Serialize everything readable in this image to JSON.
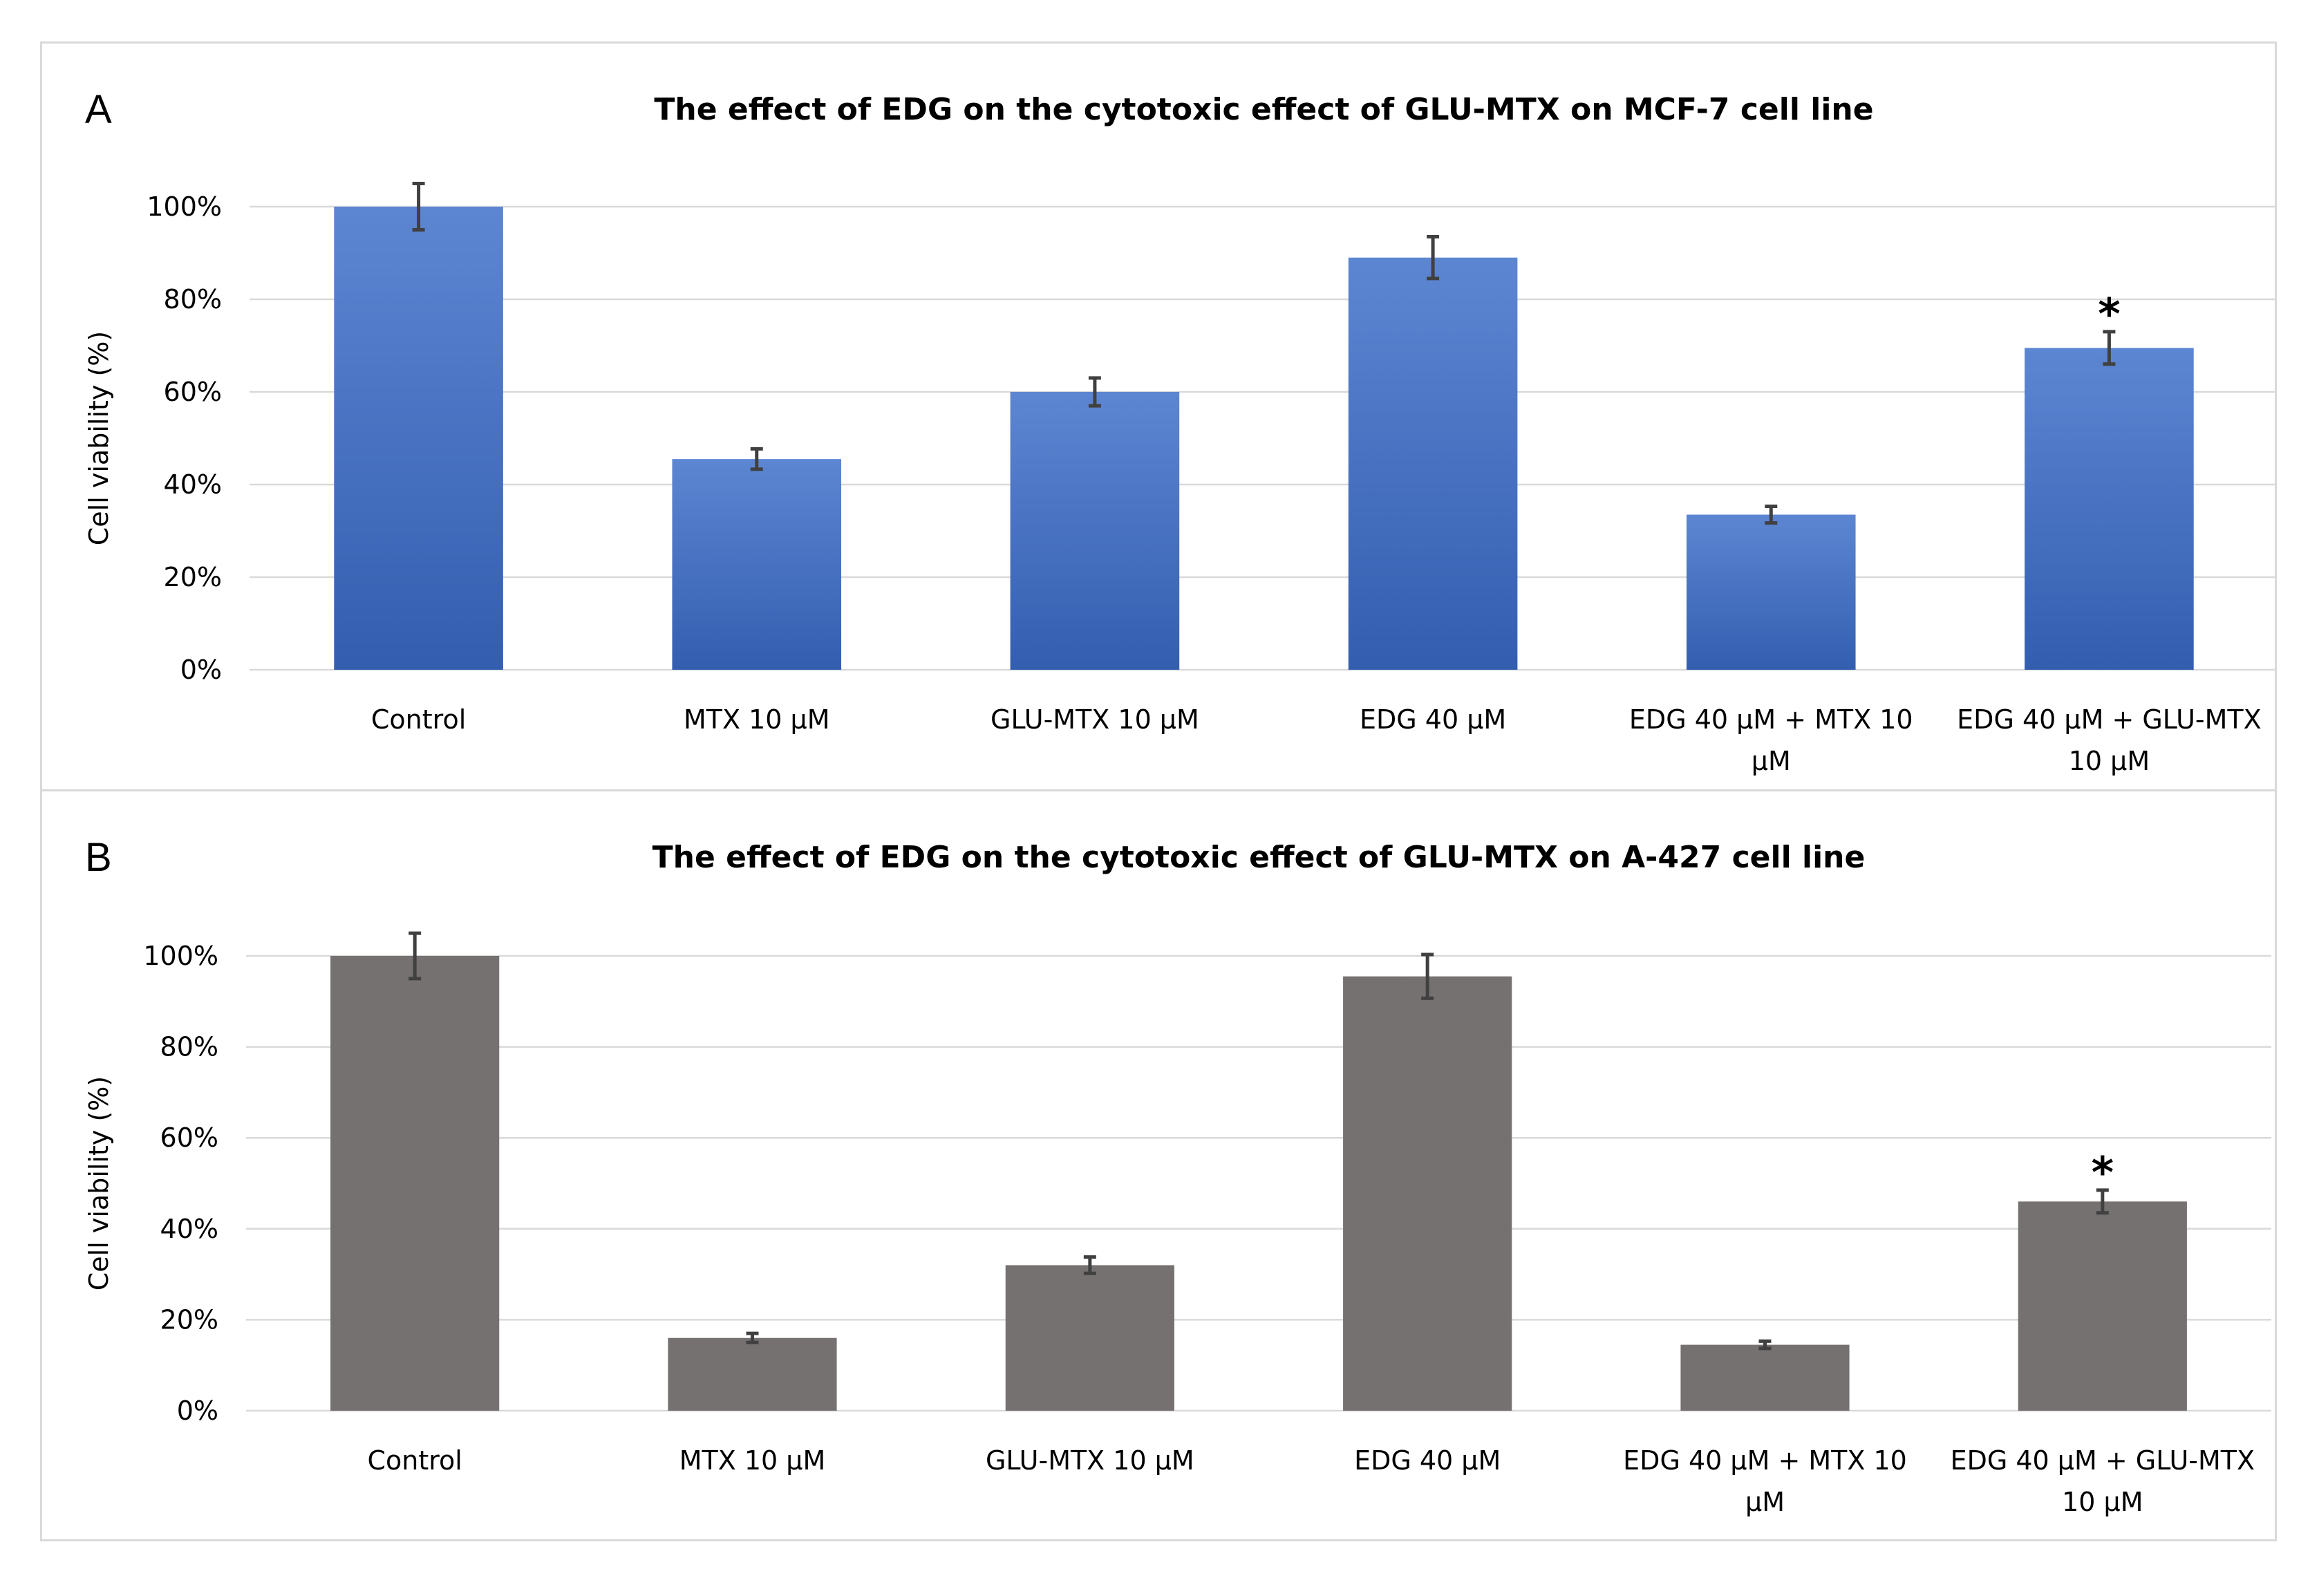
{
  "chart_data": [
    {
      "type": "bar",
      "panel_label": "A",
      "title": "The effect of EDG on the cytotoxic effect of GLU-MTX on MCF-7 cell line",
      "ylabel": "Cell viability (%)",
      "xlabel": "",
      "ylim": [
        0,
        100
      ],
      "yticks": [
        "0%",
        "20%",
        "40%",
        "60%",
        "80%",
        "100%"
      ],
      "grid": true,
      "bar_color": "#3a6bc8",
      "categories": [
        [
          "Control"
        ],
        [
          "MTX 10 μM"
        ],
        [
          "GLU-MTX 10 μM"
        ],
        [
          "EDG 40 μM"
        ],
        [
          "EDG 40 μM + MTX 10",
          "μM"
        ],
        [
          "EDG 40 μM + GLU-MTX",
          "10 μM"
        ]
      ],
      "values": [
        100,
        45.5,
        60,
        89,
        33.5,
        69.5
      ],
      "errors": [
        5,
        2.2,
        3,
        4.5,
        1.8,
        3.5
      ],
      "significance": [
        "",
        "",
        "",
        "",
        "",
        "*"
      ]
    },
    {
      "type": "bar",
      "panel_label": "B",
      "title": "The effect of EDG on the cytotoxic effect of GLU-MTX on A-427 cell line",
      "ylabel": "Cell viability (%)",
      "xlabel": "",
      "ylim": [
        0,
        100
      ],
      "yticks": [
        "0%",
        "20%",
        "40%",
        "60%",
        "80%",
        "100%"
      ],
      "grid": true,
      "bar_color": "#767171",
      "categories": [
        [
          "Control"
        ],
        [
          "MTX 10 μM"
        ],
        [
          "GLU-MTX 10 μM"
        ],
        [
          "EDG 40 μM"
        ],
        [
          "EDG 40 μM + MTX 10",
          "μM"
        ],
        [
          "EDG 40 μM + GLU-MTX",
          "10 μM"
        ]
      ],
      "values": [
        100,
        16,
        32,
        95.5,
        14.5,
        46
      ],
      "errors": [
        5,
        1,
        1.8,
        4.8,
        0.8,
        2.5
      ],
      "significance": [
        "",
        "",
        "",
        "",
        "",
        "*"
      ]
    }
  ]
}
